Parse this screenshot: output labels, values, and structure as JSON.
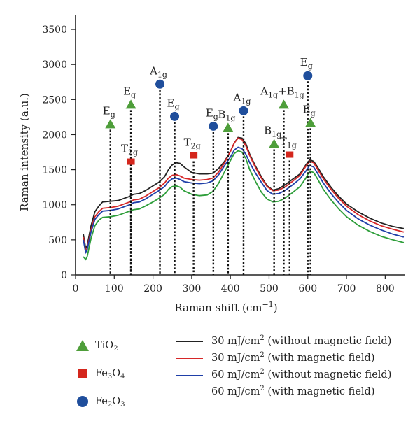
{
  "chart_data": {
    "type": "line",
    "xlabel": "Raman shift (cm",
    "xlabel_sup": "−1",
    "xlabel_end": ")",
    "ylabel": "Raman intensity (a.u.)",
    "xlim": [
      0,
      850
    ],
    "ylim": [
      0,
      3700
    ],
    "xticks": [
      0,
      100,
      200,
      300,
      400,
      500,
      600,
      700,
      800
    ],
    "yticks": [
      0,
      500,
      1000,
      1500,
      2000,
      2500,
      3000,
      3500
    ],
    "series": [
      {
        "name": "30 mJ/cm² (without magnetic field)",
        "color": "#222222",
        "x": [
          20,
          26,
          30,
          40,
          50,
          60,
          70,
          90,
          110,
          125,
          140,
          150,
          165,
          180,
          200,
          215,
          230,
          240,
          250,
          260,
          270,
          280,
          300,
          320,
          340,
          355,
          370,
          385,
          400,
          410,
          420,
          430,
          440,
          450,
          465,
          480,
          495,
          510,
          525,
          540,
          560,
          580,
          595,
          605,
          615,
          625,
          640,
          660,
          680,
          700,
          730,
          760,
          790,
          820,
          848
        ],
        "y": [
          580,
          380,
          420,
          700,
          900,
          980,
          1040,
          1050,
          1060,
          1090,
          1120,
          1150,
          1160,
          1200,
          1270,
          1320,
          1400,
          1500,
          1570,
          1600,
          1590,
          1540,
          1460,
          1440,
          1440,
          1450,
          1520,
          1620,
          1760,
          1880,
          1960,
          1950,
          1870,
          1720,
          1550,
          1400,
          1270,
          1210,
          1230,
          1280,
          1360,
          1440,
          1570,
          1640,
          1620,
          1540,
          1400,
          1250,
          1120,
          1010,
          900,
          810,
          740,
          690,
          660
        ]
      },
      {
        "name": "30 mJ/cm² (with magnetic field)",
        "color": "#d62728",
        "x": [
          20,
          26,
          30,
          40,
          50,
          60,
          70,
          90,
          110,
          125,
          140,
          150,
          165,
          180,
          200,
          215,
          230,
          240,
          250,
          260,
          270,
          280,
          300,
          320,
          340,
          355,
          370,
          385,
          400,
          410,
          420,
          430,
          440,
          450,
          465,
          480,
          495,
          510,
          525,
          540,
          560,
          580,
          595,
          605,
          615,
          625,
          640,
          660,
          680,
          700,
          730,
          760,
          790,
          820,
          848
        ],
        "y": [
          540,
          340,
          380,
          640,
          830,
          900,
          950,
          960,
          980,
          1010,
          1040,
          1070,
          1080,
          1120,
          1190,
          1240,
          1310,
          1380,
          1420,
          1430,
          1410,
          1380,
          1360,
          1350,
          1360,
          1380,
          1470,
          1600,
          1760,
          1880,
          1950,
          1930,
          1840,
          1700,
          1530,
          1380,
          1260,
          1200,
          1210,
          1250,
          1330,
          1420,
          1550,
          1620,
          1600,
          1510,
          1370,
          1220,
          1090,
          980,
          860,
          770,
          700,
          650,
          610
        ]
      },
      {
        "name": "60 mJ/cm² (without magnetic field)",
        "color": "#1f3fa8",
        "x": [
          20,
          26,
          30,
          40,
          50,
          60,
          70,
          90,
          110,
          125,
          140,
          150,
          165,
          180,
          200,
          215,
          230,
          240,
          250,
          260,
          270,
          280,
          300,
          320,
          340,
          355,
          370,
          385,
          400,
          410,
          420,
          430,
          440,
          450,
          465,
          480,
          495,
          510,
          525,
          540,
          560,
          580,
          595,
          605,
          615,
          625,
          640,
          660,
          680,
          700,
          730,
          760,
          790,
          820,
          848
        ],
        "y": [
          500,
          320,
          360,
          610,
          790,
          860,
          910,
          920,
          940,
          970,
          1000,
          1030,
          1040,
          1080,
          1150,
          1200,
          1260,
          1330,
          1370,
          1380,
          1360,
          1330,
          1310,
          1300,
          1310,
          1340,
          1430,
          1560,
          1680,
          1780,
          1820,
          1800,
          1720,
          1600,
          1450,
          1320,
          1200,
          1150,
          1160,
          1200,
          1280,
          1370,
          1480,
          1560,
          1540,
          1450,
          1310,
          1160,
          1030,
          920,
          800,
          710,
          640,
          580,
          540
        ]
      },
      {
        "name": "60 mJ/cm² (with magnetic field)",
        "color": "#2e9e3a",
        "x": [
          20,
          26,
          30,
          40,
          50,
          60,
          70,
          90,
          110,
          125,
          140,
          150,
          165,
          180,
          200,
          215,
          230,
          240,
          250,
          260,
          270,
          280,
          300,
          320,
          340,
          355,
          370,
          385,
          400,
          410,
          420,
          430,
          440,
          450,
          465,
          480,
          495,
          510,
          525,
          540,
          560,
          580,
          595,
          605,
          615,
          625,
          640,
          660,
          680,
          700,
          730,
          760,
          790,
          820,
          848
        ],
        "y": [
          260,
          220,
          260,
          520,
          700,
          780,
          820,
          830,
          850,
          880,
          910,
          930,
          940,
          980,
          1040,
          1090,
          1150,
          1220,
          1260,
          1270,
          1250,
          1200,
          1150,
          1130,
          1140,
          1190,
          1310,
          1470,
          1630,
          1730,
          1770,
          1750,
          1660,
          1500,
          1330,
          1180,
          1080,
          1040,
          1050,
          1090,
          1170,
          1260,
          1380,
          1480,
          1460,
          1370,
          1220,
          1070,
          940,
          830,
          710,
          620,
          550,
          500,
          460
        ]
      }
    ],
    "peaks": [
      {
        "phase": "TiO2",
        "label": "E",
        "sub": "g",
        "x": 90,
        "y": 2150
      },
      {
        "phase": "TiO2",
        "label": "E",
        "sub": "g",
        "x": 143,
        "y": 2430
      },
      {
        "phase": "Fe3O4",
        "label": "T",
        "sub": "2g",
        "x": 143,
        "y": 1610
      },
      {
        "phase": "Fe2O3",
        "label": "A",
        "sub": "1g",
        "x": 218,
        "y": 2720
      },
      {
        "phase": "Fe2O3",
        "label": "E",
        "sub": "g",
        "x": 256,
        "y": 2260
      },
      {
        "phase": "Fe3O4",
        "label": "T",
        "sub": "2g",
        "x": 305,
        "y": 1700
      },
      {
        "phase": "Fe2O3",
        "label": "E",
        "sub": "g",
        "x": 356,
        "y": 2120
      },
      {
        "phase": "TiO2",
        "label": "B",
        "sub": "1g",
        "x": 394,
        "y": 2100
      },
      {
        "phase": "Fe2O3",
        "label": "A",
        "sub": "1g",
        "x": 434,
        "y": 2340
      },
      {
        "phase": "TiO2",
        "label": "B",
        "sub": "1g",
        "x": 513,
        "y": 1870
      },
      {
        "phase": "TiO2",
        "label": "A",
        "sub": "1g",
        "label2": "+B",
        "sub2": "1g",
        "x": 538,
        "y": 2430
      },
      {
        "phase": "Fe3O4",
        "label": "T",
        "sub": "1g",
        "x": 553,
        "y": 1710
      },
      {
        "phase": "Fe2O3",
        "label": "E",
        "sub": "g",
        "x": 600,
        "y": 2840
      },
      {
        "phase": "TiO2",
        "label": "E",
        "sub": "g",
        "x": 607,
        "y": 2170
      }
    ]
  },
  "legend_phases": [
    {
      "name": "TiO",
      "sub": "2",
      "symbol": "triangle",
      "color": "#4e9e3a"
    },
    {
      "name": "Fe",
      "sub": "3",
      "name2": "O",
      "sub2": "4",
      "symbol": "square",
      "color": "#d4261c"
    },
    {
      "name": "Fe",
      "sub": "2",
      "name2": "O",
      "sub2": "3",
      "symbol": "circle",
      "color": "#1f4e9c"
    }
  ],
  "legend_series": [
    {
      "pre": "30 mJ/cm",
      "sup": "2",
      "post": " (without magnetic field)",
      "color": "#222222"
    },
    {
      "pre": "30 mJ/cm",
      "sup": "2",
      "post": " (with magnetic field)",
      "color": "#d62728"
    },
    {
      "pre": "60 mJ/cm",
      "sup": "2",
      "post": " (without magnetic field)",
      "color": "#1f3fa8"
    },
    {
      "pre": "60 mJ/cm",
      "sup": "2",
      "post": " (with magnetic field)",
      "color": "#2e9e3a"
    }
  ]
}
